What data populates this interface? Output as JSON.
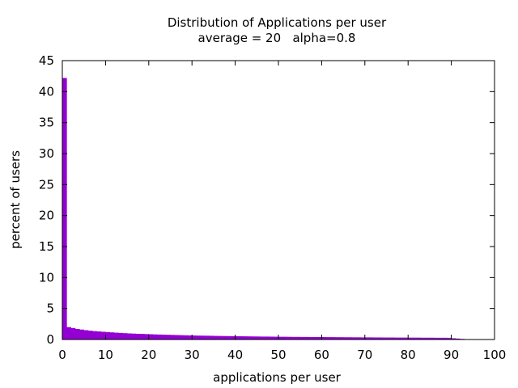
{
  "chart_data": {
    "type": "bar",
    "title": "Distribution of Applications per user",
    "subtitle": "average = 20   alpha=0.8",
    "xlabel": "applications per user",
    "ylabel": "percent of users",
    "xlim": [
      0,
      100
    ],
    "ylim": [
      0,
      45
    ],
    "xticks": [
      "0",
      "10",
      "20",
      "30",
      "40",
      "50",
      "60",
      "70",
      "80",
      "90",
      "100"
    ],
    "yticks": [
      "0",
      "5",
      "10",
      "15",
      "20",
      "25",
      "30",
      "35",
      "40",
      "45"
    ],
    "grid": false,
    "legend": "none",
    "bar_color": "#9400d3",
    "x": [
      0,
      1,
      2,
      3,
      4,
      5,
      6,
      7,
      8,
      9,
      10,
      11,
      12,
      13,
      14,
      15,
      16,
      17,
      18,
      19,
      20,
      21,
      22,
      23,
      24,
      25,
      26,
      27,
      28,
      29,
      30,
      31,
      32,
      33,
      34,
      35,
      36,
      37,
      38,
      39,
      40,
      41,
      42,
      43,
      44,
      45,
      46,
      47,
      48,
      49,
      50,
      51,
      52,
      53,
      54,
      55,
      56,
      57,
      58,
      59,
      60,
      61,
      62,
      63,
      64,
      65,
      66,
      67,
      68,
      69,
      70,
      71,
      72,
      73,
      74,
      75,
      76,
      77,
      78,
      79,
      80,
      81,
      82,
      83,
      84,
      85,
      86,
      87,
      88,
      89,
      90,
      91,
      92
    ],
    "values": [
      42.2,
      2.0,
      1.85,
      1.7,
      1.6,
      1.5,
      1.42,
      1.35,
      1.3,
      1.25,
      1.2,
      1.15,
      1.1,
      1.06,
      1.02,
      0.98,
      0.95,
      0.92,
      0.9,
      0.87,
      0.85,
      0.82,
      0.8,
      0.78,
      0.76,
      0.74,
      0.72,
      0.7,
      0.68,
      0.66,
      0.65,
      0.63,
      0.62,
      0.61,
      0.6,
      0.58,
      0.57,
      0.56,
      0.55,
      0.54,
      0.53,
      0.52,
      0.51,
      0.5,
      0.49,
      0.48,
      0.47,
      0.47,
      0.46,
      0.45,
      0.44,
      0.44,
      0.43,
      0.42,
      0.42,
      0.41,
      0.41,
      0.4,
      0.4,
      0.39,
      0.39,
      0.38,
      0.38,
      0.37,
      0.37,
      0.36,
      0.36,
      0.35,
      0.35,
      0.34,
      0.34,
      0.34,
      0.33,
      0.33,
      0.32,
      0.32,
      0.32,
      0.31,
      0.31,
      0.31,
      0.3,
      0.3,
      0.3,
      0.29,
      0.29,
      0.29,
      0.28,
      0.28,
      0.28,
      0.27,
      0.2,
      0.15,
      0.1
    ]
  }
}
